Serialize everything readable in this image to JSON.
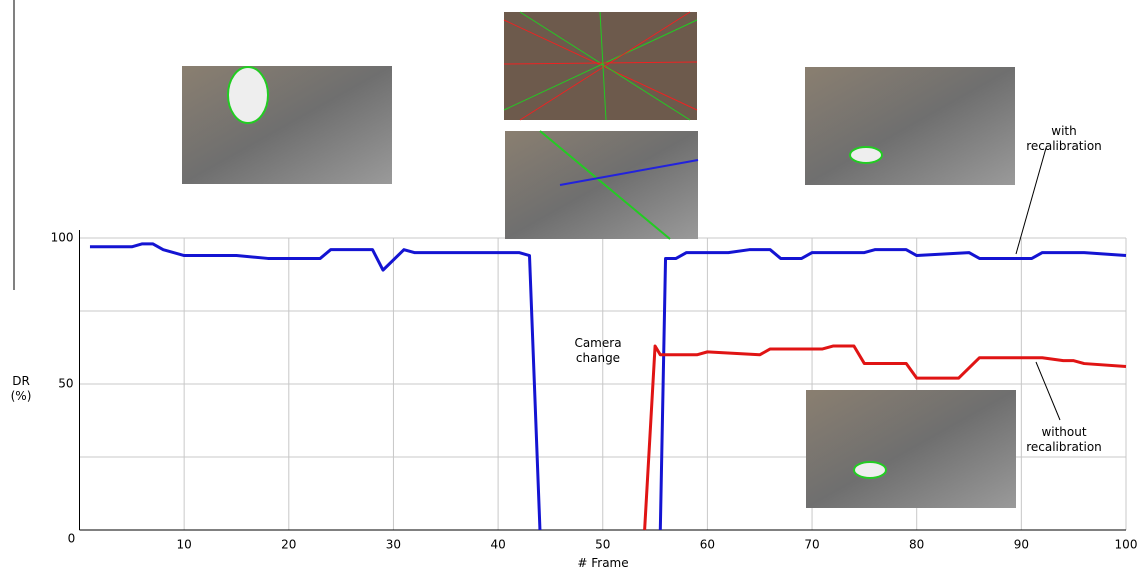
{
  "chart_data": {
    "type": "line",
    "xlabel": "# Frame",
    "ylabel": "DR (%)",
    "annotation": "Camera change",
    "xlim": [
      0,
      100
    ],
    "ylim": [
      0,
      100
    ],
    "xticks": [
      0,
      10,
      20,
      30,
      40,
      50,
      60,
      70,
      80,
      90,
      100
    ],
    "yticks": [
      50,
      100
    ],
    "ygrid": [
      25,
      50,
      75,
      100
    ],
    "grid": true,
    "series": [
      {
        "name": "with recalibration",
        "color": "#1414d2",
        "x": [
          1,
          5,
          6,
          7,
          8,
          10,
          15,
          18,
          22,
          23,
          24,
          28,
          29,
          31,
          32,
          42,
          43,
          44,
          55,
          55.5,
          56,
          57,
          58,
          62,
          64,
          66,
          67,
          69,
          70,
          75,
          76,
          79,
          80,
          85,
          86,
          91,
          92,
          96,
          100
        ],
        "values": [
          97,
          97,
          98,
          98,
          96,
          94,
          94,
          93,
          93,
          93,
          96,
          96,
          89,
          96,
          95,
          95,
          94,
          0,
          null,
          0,
          93,
          93,
          95,
          95,
          96,
          96,
          93,
          93,
          95,
          95,
          96,
          96,
          94,
          95,
          93,
          93,
          95,
          95,
          94
        ]
      },
      {
        "name": "without recalibration",
        "color": "#e01414",
        "x": [
          54,
          55,
          55.5,
          59,
          60,
          65,
          66,
          71,
          72,
          74,
          75,
          79,
          80,
          84,
          86,
          92,
          94,
          95,
          96,
          100
        ],
        "values": [
          0,
          63,
          60,
          60,
          61,
          60,
          62,
          62,
          63,
          63,
          57,
          57,
          52,
          52,
          59,
          59,
          58,
          58,
          57,
          56
        ]
      }
    ]
  }
}
